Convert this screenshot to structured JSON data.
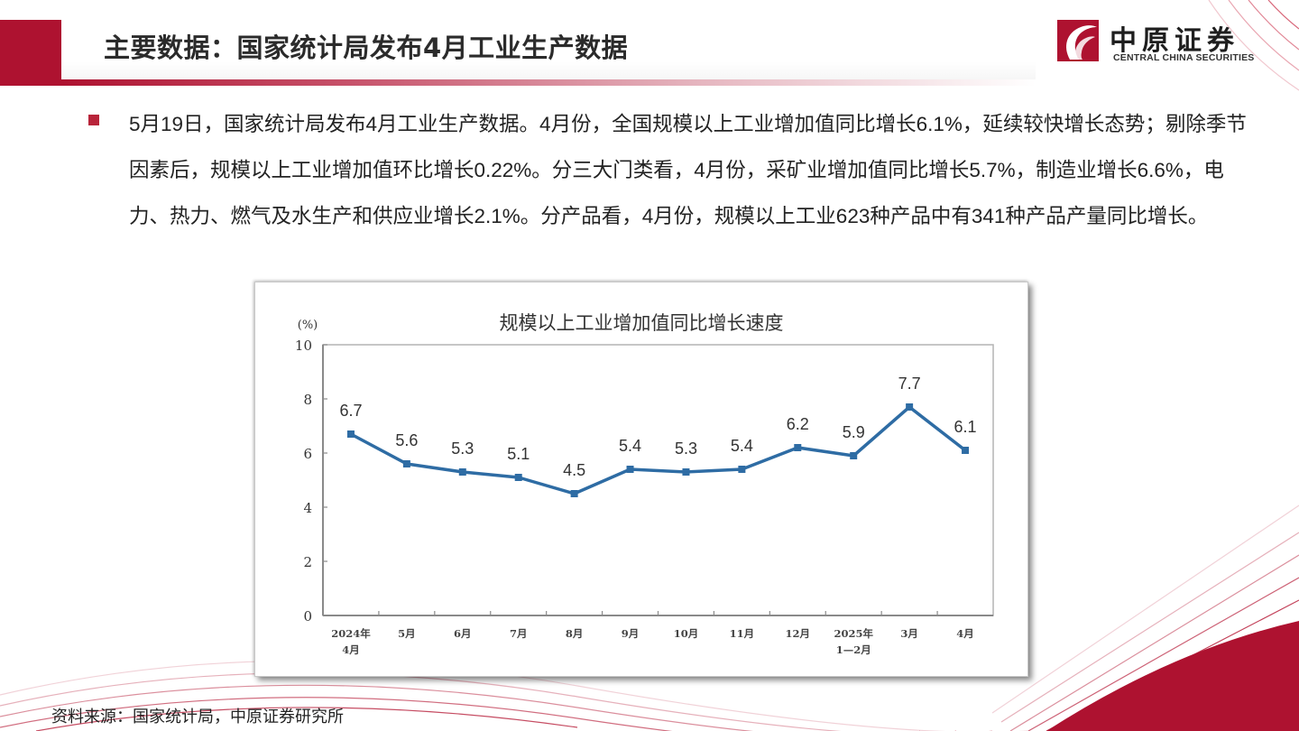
{
  "header": {
    "title": "主要数据：国家统计局发布4月工业生产数据"
  },
  "logo": {
    "name_cn": "中原证券",
    "name_en": "CENTRAL CHINA SECURITIES"
  },
  "colors": {
    "brand_red": "#ae1230",
    "line_blue": "#2e6ca4",
    "axis_gray": "#8a8a8a"
  },
  "body": {
    "paragraph": "5月19日，国家统计局发布4月工业生产数据。4月份，全国规模以上工业增加值同比增长6.1%，延续较快增长态势；剔除季节因素后，规模以上工业增加值环比增长0.22%。分三大门类看，4月份，采矿业增加值同比增长5.7%，制造业增长6.6%，电力、热力、燃气及水生产和供应业增长2.1%。分产品看，4月份，规模以上工业623种产品中有341种产品产量同比增长。"
  },
  "chart_data": {
    "type": "line",
    "title": "规模以上工业增加值同比增长速度",
    "ylabel": "(%)",
    "xlabel": "",
    "ylim": [
      0,
      10
    ],
    "yticks": [
      0,
      2,
      4,
      6,
      8,
      10
    ],
    "grid": false,
    "legend": null,
    "categories": [
      "2024年\n4月",
      "5月",
      "6月",
      "7月",
      "8月",
      "9月",
      "10月",
      "11月",
      "12月",
      "2025年\n1—2月",
      "3月",
      "4月"
    ],
    "series": [
      {
        "name": "规模以上工业增加值同比增长速度",
        "values": [
          6.7,
          5.6,
          5.3,
          5.1,
          4.5,
          5.4,
          5.3,
          5.4,
          6.2,
          5.9,
          7.7,
          6.1
        ]
      }
    ],
    "data_labels": [
      "6.7",
      "5.6",
      "5.3",
      "5.1",
      "4.5",
      "5.4",
      "5.3",
      "5.4",
      "6.2",
      "5.9",
      "7.7",
      "6.1"
    ]
  },
  "footer": {
    "source": "资料来源：国家统计局，中原证券研究所"
  }
}
